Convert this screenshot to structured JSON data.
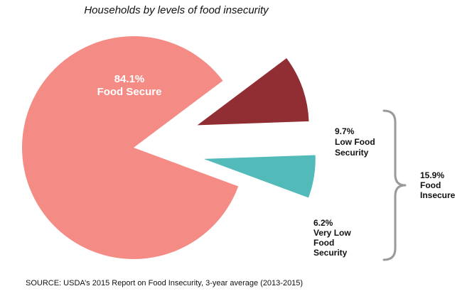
{
  "chart_data": {
    "type": "pie",
    "title": "Households by levels of food insecurity",
    "slices": [
      {
        "name": "Food Secure",
        "value": 84.1,
        "label": "84.1%",
        "sub": "Food Secure",
        "color": "#f58b85"
      },
      {
        "name": "Low Food Security",
        "value": 9.7,
        "label": "9.7%",
        "sub1": "Low Food",
        "sub2": "Security",
        "color": "#902e33"
      },
      {
        "name": "Very Low Food Security",
        "value": 6.2,
        "label": "6.2%",
        "sub1": "Very Low",
        "sub2": "Food",
        "sub3": "Security",
        "color": "#52bab8"
      }
    ],
    "group": {
      "label": "15.9%",
      "sub1": "Food",
      "sub2": "Insecure"
    },
    "source": "SOURCE: USDA’s 2015 Report on Food Insecurity, 3-year average (2013-2015)"
  }
}
